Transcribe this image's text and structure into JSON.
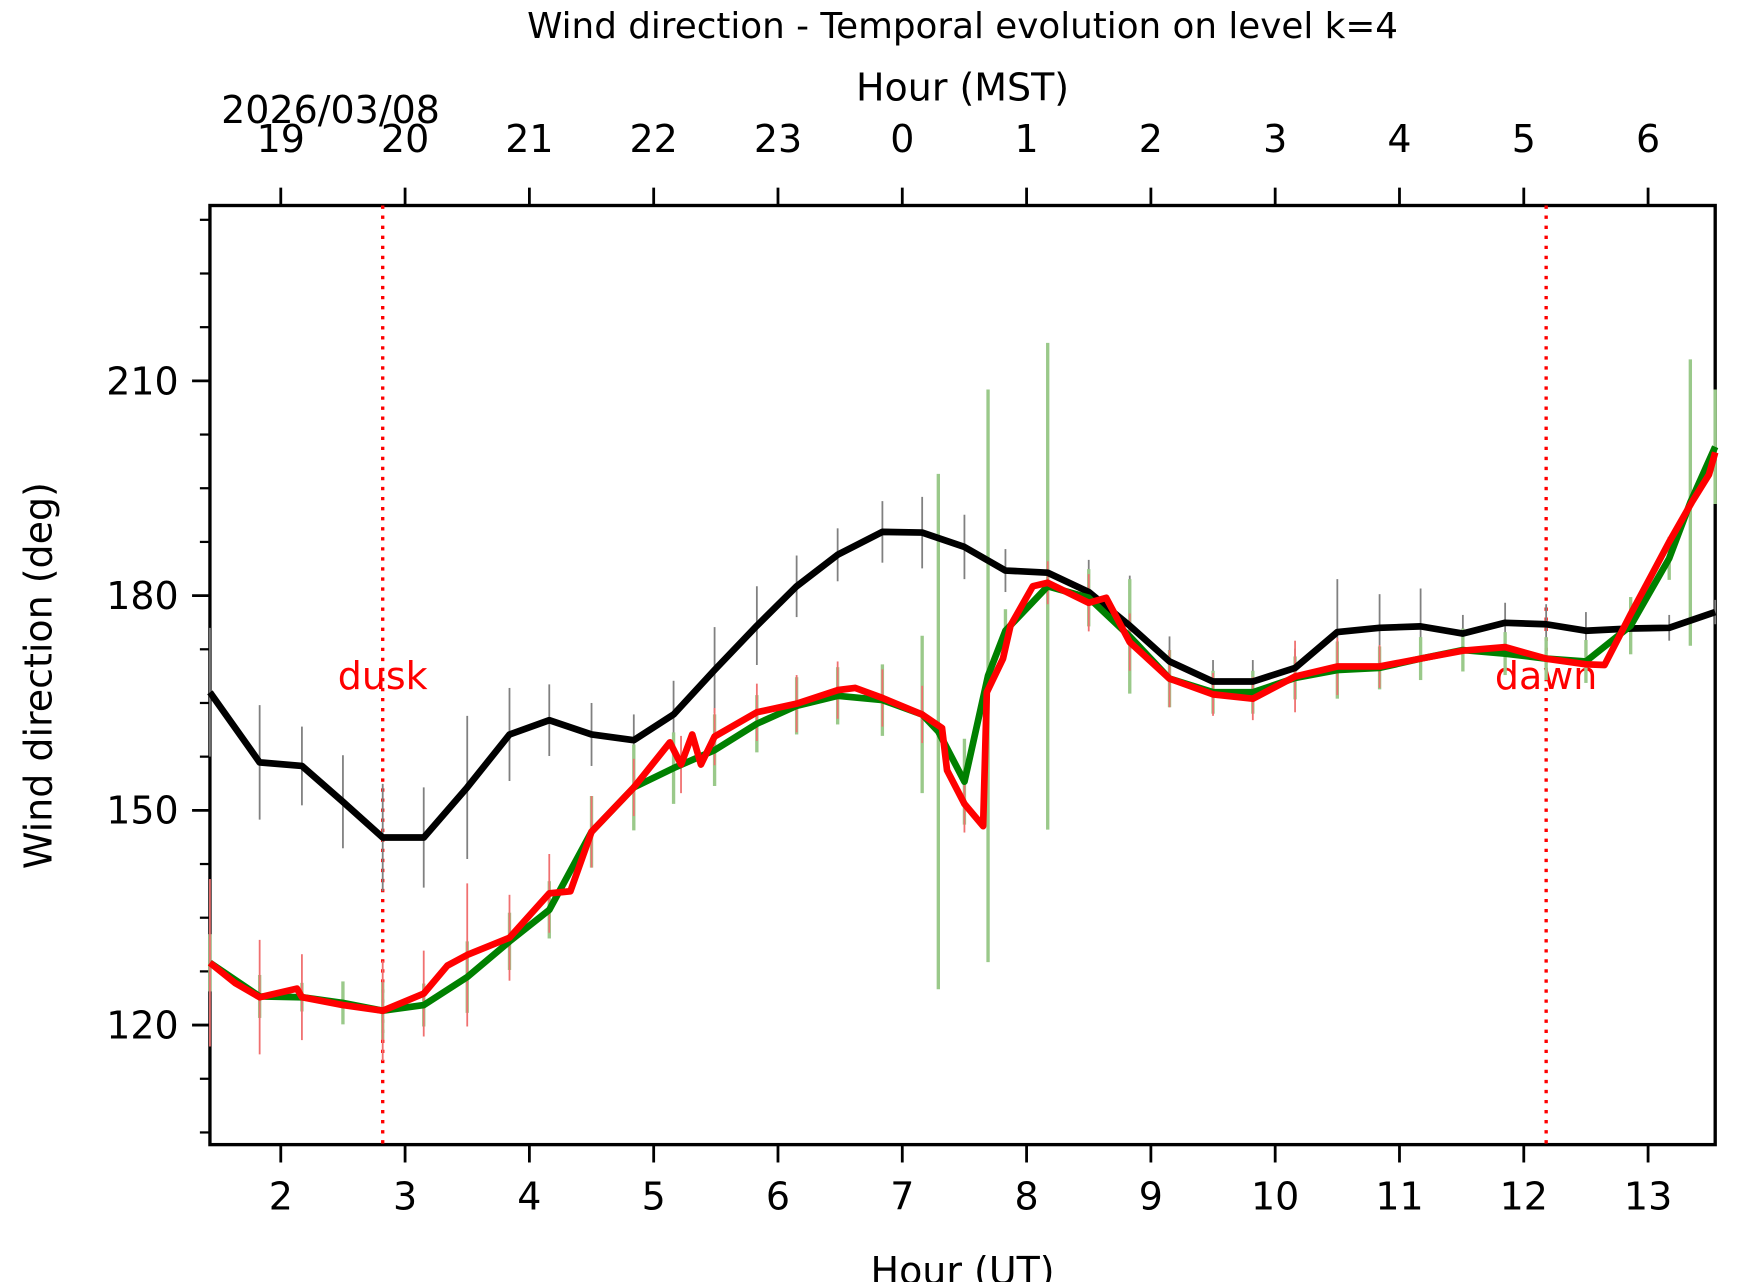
{
  "chart_data": {
    "type": "line",
    "title": "Wind direction - Temporal evolution on level k=4",
    "xlabel": "Hour (UT)",
    "ylabel": "Wind direction (deg)",
    "x2label": "Hour (MST)",
    "date_label": "2026/03/08",
    "xlim": [
      1.43,
      13.54
    ],
    "ylim": [
      103.3,
      234.5
    ],
    "xticks": [
      2,
      3,
      4,
      5,
      6,
      7,
      8,
      9,
      10,
      11,
      12,
      13
    ],
    "x2ticks": [
      {
        "value": 2,
        "label": "19"
      },
      {
        "value": 3,
        "label": "20"
      },
      {
        "value": 4,
        "label": "21"
      },
      {
        "value": 5,
        "label": "22"
      },
      {
        "value": 6,
        "label": "23"
      },
      {
        "value": 7,
        "label": "0"
      },
      {
        "value": 8,
        "label": "1"
      },
      {
        "value": 9,
        "label": "2"
      },
      {
        "value": 10,
        "label": "3"
      },
      {
        "value": 11,
        "label": "4"
      },
      {
        "value": 12,
        "label": "5"
      },
      {
        "value": 13,
        "label": "6"
      }
    ],
    "yticks": [
      120,
      150,
      180,
      210
    ],
    "yminorticks": [
      105,
      112.5,
      127.5,
      135,
      142.5,
      157.5,
      165,
      172.5,
      187.5,
      195,
      202.5,
      217.5,
      225,
      232.5
    ],
    "annotations": [
      {
        "text": "dusk",
        "x": 2.82,
        "color": "#ff0000"
      },
      {
        "text": "dawn",
        "x": 12.18,
        "color": "#ff0000"
      }
    ],
    "series": [
      {
        "color": "#000000",
        "error_color": "#808080",
        "x": [
          1.43,
          1.83,
          2.17,
          2.5,
          2.82,
          3.15,
          3.5,
          3.84,
          4.16,
          4.5,
          4.84,
          5.16,
          5.49,
          5.83,
          6.15,
          6.48,
          6.84,
          7.16,
          7.5,
          7.83,
          8.17,
          8.5,
          8.83,
          9.15,
          9.5,
          9.82,
          10.16,
          10.5,
          10.84,
          11.17,
          11.51,
          11.85,
          12.18,
          12.5,
          12.86,
          13.17,
          13.54
        ],
        "values": [
          166.5,
          156.7,
          156.2,
          151.2,
          146.2,
          146.2,
          153.2,
          160.6,
          162.6,
          160.6,
          159.8,
          163.4,
          169.6,
          175.8,
          181.3,
          185.7,
          188.9,
          188.8,
          186.8,
          183.5,
          183.2,
          180.5,
          175.8,
          170.8,
          168.0,
          168.0,
          169.9,
          174.9,
          175.5,
          175.7,
          174.7,
          176.2,
          176.0,
          175.1,
          175.4,
          175.5,
          177.7
        ],
        "errors": [
          9,
          8,
          5.5,
          6.5,
          7.5,
          7,
          10,
          6.5,
          5,
          4.4,
          3.6,
          4.7,
          6,
          5.5,
          4.3,
          3.7,
          4.3,
          5,
          4.5,
          3,
          3,
          4.5,
          7,
          3.5,
          3,
          3,
          2.7,
          7.4,
          4.7,
          5.3,
          2.6,
          2.8,
          2.8,
          2.6,
          2.3,
          1.8,
          1.7
        ]
      },
      {
        "color": "#008000",
        "error_color": "#9ac98a",
        "x": [
          1.43,
          1.83,
          2.17,
          2.5,
          2.82,
          3.15,
          3.5,
          3.84,
          4.16,
          4.5,
          4.84,
          5.16,
          5.49,
          5.83,
          6.15,
          6.48,
          6.84,
          7.16,
          7.29,
          7.5,
          7.69,
          7.83,
          8.17,
          8.5,
          8.83,
          9.15,
          9.5,
          9.82,
          10.16,
          10.5,
          10.84,
          11.17,
          11.51,
          11.85,
          12.18,
          12.5,
          12.86,
          13.17,
          13.34,
          13.54
        ],
        "values": [
          128.7,
          124.0,
          123.9,
          123.1,
          122.0,
          122.8,
          126.7,
          131.7,
          136.1,
          147.0,
          153.2,
          155.9,
          158.4,
          162.1,
          164.6,
          166.0,
          165.4,
          163.4,
          161.0,
          154.0,
          168.8,
          175.1,
          181.3,
          179.7,
          174.3,
          168.4,
          166.5,
          166.5,
          168.5,
          169.6,
          169.9,
          171.2,
          172.4,
          171.9,
          171.2,
          170.8,
          175.8,
          185.2,
          193.0,
          200.8
        ],
        "errors": [
          4,
          3,
          2,
          3,
          4,
          3,
          5,
          4,
          4,
          5,
          6,
          5,
          5,
          4,
          4,
          4,
          5,
          11,
          36,
          6,
          40,
          3,
          34,
          4,
          8,
          4,
          3,
          3,
          3,
          4,
          3,
          3,
          3,
          3,
          3,
          3,
          4,
          3,
          20,
          8
        ]
      },
      {
        "color": "#ff0000",
        "error_color": "#f07070",
        "x": [
          1.43,
          1.63,
          1.83,
          2.13,
          2.17,
          2.5,
          2.82,
          3.15,
          3.34,
          3.5,
          3.84,
          4.16,
          4.33,
          4.5,
          4.84,
          5.13,
          5.22,
          5.31,
          5.38,
          5.49,
          5.83,
          6.15,
          6.48,
          6.62,
          6.84,
          7.16,
          7.32,
          7.36,
          7.5,
          7.65,
          7.68,
          7.81,
          7.87,
          8.05,
          8.17,
          8.5,
          8.64,
          8.83,
          9.15,
          9.5,
          9.82,
          10.16,
          10.5,
          10.84,
          11.17,
          11.51,
          11.85,
          12.18,
          12.5,
          12.65,
          12.86,
          13.17,
          13.35,
          13.49,
          13.54
        ],
        "values": [
          128.7,
          125.9,
          123.9,
          125.1,
          123.9,
          122.8,
          122.0,
          124.4,
          128.3,
          129.8,
          132.2,
          138.4,
          138.7,
          147.0,
          153.2,
          159.5,
          156.4,
          160.6,
          156.4,
          160.3,
          163.7,
          164.9,
          166.8,
          167.1,
          165.7,
          163.4,
          161.5,
          155.6,
          150.9,
          147.8,
          166.5,
          171.2,
          175.8,
          181.3,
          181.8,
          179.0,
          179.7,
          173.5,
          168.4,
          166.2,
          165.6,
          168.7,
          170.1,
          170.1,
          171.2,
          172.3,
          172.8,
          171.2,
          170.4,
          170.3,
          177.4,
          187.5,
          193.0,
          196.9,
          200.0
        ],
        "errors": [
          11.7,
          null,
          8,
          null,
          6,
          null,
          7,
          6,
          null,
          10,
          6,
          5.5,
          null,
          5,
          4,
          null,
          4,
          null,
          null,
          4,
          4,
          4,
          4,
          null,
          4,
          4,
          null,
          null,
          4,
          null,
          null,
          null,
          null,
          null,
          3,
          4,
          null,
          4,
          4,
          3,
          3,
          5,
          4,
          3,
          null,
          null,
          null,
          null,
          null,
          null,
          null,
          null,
          null,
          null,
          null
        ]
      }
    ]
  }
}
